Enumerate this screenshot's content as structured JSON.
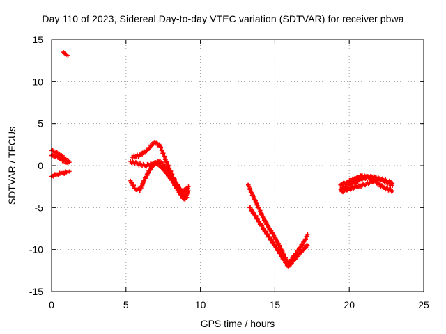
{
  "chart_data": {
    "type": "scatter",
    "title": "Day 110 of 2023, Sidereal Day-to-day VTEC variation (SDTVAR) for receiver pbwa",
    "xlabel": "GPS time / hours",
    "ylabel": "SDTVAR / TECUs",
    "xlim": [
      0,
      25
    ],
    "ylim": [
      -15,
      15
    ],
    "xticks": [
      "0",
      "5",
      "10",
      "15",
      "20",
      "25"
    ],
    "yticks": [
      "15",
      "10",
      "5",
      "0",
      "-5",
      "-10",
      "-15"
    ],
    "grid": true,
    "series_color": "#ff0000",
    "series": [
      {
        "name": "track-outlier",
        "points": [
          [
            0.8,
            13.5
          ],
          [
            0.9,
            13.3
          ],
          [
            1.0,
            13.2
          ],
          [
            1.1,
            13.1
          ]
        ]
      },
      {
        "name": "track-1a",
        "points": [
          [
            0.0,
            1.8
          ],
          [
            0.3,
            1.6
          ],
          [
            0.6,
            1.2
          ],
          [
            0.9,
            0.8
          ],
          [
            1.2,
            0.4
          ]
        ]
      },
      {
        "name": "track-1b",
        "points": [
          [
            0.0,
            1.2
          ],
          [
            0.4,
            1.0
          ],
          [
            0.8,
            0.6
          ],
          [
            1.1,
            0.3
          ]
        ]
      },
      {
        "name": "track-1c",
        "points": [
          [
            0.0,
            -1.3
          ],
          [
            0.3,
            -1.1
          ],
          [
            0.7,
            -0.9
          ],
          [
            1.0,
            -0.8
          ],
          [
            1.2,
            -0.7
          ]
        ]
      },
      {
        "name": "track-2a",
        "points": [
          [
            5.3,
            -1.8
          ],
          [
            5.6,
            -2.7
          ],
          [
            5.9,
            -3.0
          ],
          [
            6.3,
            -1.5
          ],
          [
            6.7,
            -0.2
          ],
          [
            7.0,
            0.4
          ],
          [
            7.5,
            -0.4
          ],
          [
            8.0,
            -1.5
          ],
          [
            8.5,
            -3.0
          ],
          [
            8.9,
            -4.0
          ],
          [
            9.1,
            -3.8
          ]
        ]
      },
      {
        "name": "track-2b",
        "points": [
          [
            5.3,
            0.5
          ],
          [
            5.8,
            0.2
          ],
          [
            6.3,
            0.0
          ],
          [
            6.8,
            0.2
          ],
          [
            7.3,
            0.5
          ],
          [
            7.8,
            -0.5
          ],
          [
            8.3,
            -2.0
          ],
          [
            8.8,
            -3.2
          ],
          [
            9.2,
            -2.5
          ]
        ]
      },
      {
        "name": "track-2c",
        "points": [
          [
            5.4,
            1.0
          ],
          [
            5.9,
            1.2
          ],
          [
            6.4,
            1.8
          ],
          [
            6.9,
            2.8
          ],
          [
            7.3,
            2.3
          ],
          [
            7.7,
            0.5
          ],
          [
            8.2,
            -1.5
          ],
          [
            8.6,
            -2.8
          ],
          [
            9.0,
            -3.8
          ],
          [
            9.2,
            -3.0
          ]
        ]
      },
      {
        "name": "track-3a",
        "points": [
          [
            13.2,
            -2.3
          ],
          [
            13.5,
            -3.5
          ],
          [
            13.9,
            -5.0
          ],
          [
            14.3,
            -6.5
          ],
          [
            14.8,
            -8.0
          ],
          [
            15.3,
            -9.5
          ],
          [
            15.7,
            -11.0
          ],
          [
            15.9,
            -11.7
          ],
          [
            16.2,
            -11.0
          ],
          [
            16.6,
            -10.0
          ],
          [
            17.0,
            -9.0
          ],
          [
            17.2,
            -8.2
          ]
        ]
      },
      {
        "name": "track-3b",
        "points": [
          [
            13.3,
            -5.0
          ],
          [
            13.7,
            -6.0
          ],
          [
            14.1,
            -7.2
          ],
          [
            14.6,
            -8.5
          ],
          [
            15.1,
            -9.8
          ],
          [
            15.6,
            -11.2
          ],
          [
            15.9,
            -12.0
          ],
          [
            16.3,
            -11.2
          ],
          [
            16.8,
            -10.2
          ],
          [
            17.2,
            -9.5
          ]
        ]
      },
      {
        "name": "track-4a",
        "points": [
          [
            19.4,
            -2.3
          ],
          [
            19.8,
            -2.0
          ],
          [
            20.3,
            -1.6
          ],
          [
            20.8,
            -1.2
          ],
          [
            21.3,
            -1.4
          ],
          [
            21.8,
            -2.0
          ],
          [
            22.3,
            -2.6
          ],
          [
            22.9,
            -3.0
          ]
        ]
      },
      {
        "name": "track-4b",
        "points": [
          [
            19.5,
            -3.1
          ],
          [
            20.0,
            -2.8
          ],
          [
            20.5,
            -2.5
          ],
          [
            21.0,
            -2.3
          ],
          [
            21.5,
            -1.9
          ],
          [
            22.0,
            -1.6
          ],
          [
            22.5,
            -1.8
          ],
          [
            22.9,
            -2.1
          ]
        ]
      },
      {
        "name": "track-4c",
        "points": [
          [
            19.4,
            -2.8
          ],
          [
            19.8,
            -2.5
          ],
          [
            20.3,
            -2.0
          ],
          [
            20.8,
            -1.6
          ],
          [
            21.3,
            -1.3
          ],
          [
            21.8,
            -1.4
          ],
          [
            22.3,
            -1.8
          ],
          [
            22.9,
            -2.4
          ]
        ]
      }
    ]
  }
}
